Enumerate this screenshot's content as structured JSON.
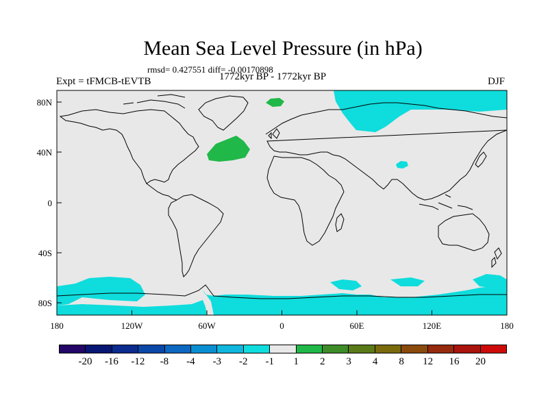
{
  "title": "Mean Sea Level Pressure (in hPa)",
  "stats": "rmsd= 0.427551 diff= -0.00170898",
  "expt": "Expt = tFMCB-tEVTB",
  "period": "1772kyr BP - 1772kyr BP",
  "season": "DJF",
  "x_ticks": [
    "180",
    "120W",
    "60W",
    "0",
    "60E",
    "120E",
    "180"
  ],
  "y_ticks": [
    "80N",
    "40N",
    "0",
    "40S",
    "80S"
  ],
  "colorbar": {
    "colors": [
      "#230668",
      "#071672",
      "#0b2c8e",
      "#0a48a8",
      "#0c68c0",
      "#0a8ed2",
      "#0fb6de",
      "#0fdcdc",
      "#e8e8e8",
      "#20b848",
      "#3e8c28",
      "#5a7a18",
      "#7a6a0c",
      "#8a4a0c",
      "#952a0c",
      "#a8140c",
      "#cc0a0a"
    ],
    "labels": [
      "-20",
      "-16",
      "-12",
      "-8",
      "-4",
      "-3",
      "-2",
      "-1",
      "1",
      "2",
      "3",
      "4",
      "8",
      "12",
      "16",
      "20"
    ]
  },
  "colors": {
    "background": "#e8e8e8",
    "negative_small": "#0fdcdc",
    "positive_small": "#20b848"
  }
}
